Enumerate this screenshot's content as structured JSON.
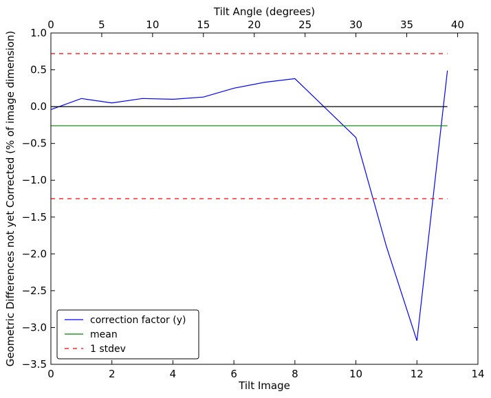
{
  "chart_data": {
    "type": "line",
    "xlabel": "Tilt Image",
    "ylabel": "Geometric Differences not yet Corrected (% of image dimension)",
    "top_xlabel": "Tilt Angle (degrees)",
    "xlim": [
      0,
      14
    ],
    "ylim": [
      -3.5,
      1.0
    ],
    "top_xlim": [
      0,
      42
    ],
    "xticks": [
      0,
      2,
      4,
      6,
      8,
      10,
      12,
      14
    ],
    "yticks": [
      1.0,
      0.5,
      0.0,
      -0.5,
      -1.0,
      -1.5,
      -2.0,
      -2.5,
      -3.0,
      -3.5
    ],
    "top_xticks": [
      0,
      5,
      10,
      15,
      20,
      25,
      30,
      35,
      40
    ],
    "xtick_labels": [
      "0",
      "2",
      "4",
      "6",
      "8",
      "10",
      "12",
      "14"
    ],
    "ytick_labels": [
      "1.0",
      "0.5",
      "0.0",
      "−0.5",
      "−1.0",
      "−1.5",
      "−2.0",
      "−2.5",
      "−3.0",
      "−3.5"
    ],
    "top_xtick_labels": [
      "0",
      "5",
      "10",
      "15",
      "20",
      "25",
      "30",
      "35",
      "40"
    ],
    "grid": false,
    "legend_position": "bottom-left",
    "series": [
      {
        "name": "correction factor (y)",
        "color": "#0000ff",
        "style": "solid",
        "x": [
          0,
          1,
          2,
          3,
          4,
          5,
          6,
          7,
          8,
          10,
          11,
          12,
          13
        ],
        "values": [
          -0.04,
          0.11,
          0.05,
          0.11,
          0.1,
          0.13,
          0.25,
          0.33,
          0.38,
          -0.42,
          -1.9,
          -3.18,
          0.49
        ]
      },
      {
        "name": "",
        "color": "#000000",
        "style": "solid",
        "x": [
          0,
          13
        ],
        "values": [
          0.0,
          0.0
        ]
      },
      {
        "name": "mean",
        "color": "#008000",
        "style": "solid",
        "x": [
          0,
          13
        ],
        "values": [
          -0.26,
          -0.26
        ]
      },
      {
        "name": "1 stdev",
        "color": "#ff0000",
        "style": "dashed",
        "x": [
          0,
          13
        ],
        "values": [
          0.72,
          0.72
        ]
      },
      {
        "name": "",
        "color": "#ff0000",
        "style": "dashed",
        "x": [
          0,
          13
        ],
        "values": [
          -1.25,
          -1.25
        ]
      }
    ],
    "legend": [
      {
        "label": "correction factor (y)",
        "color": "#0000ff",
        "style": "solid"
      },
      {
        "label": "mean",
        "color": "#008000",
        "style": "solid"
      },
      {
        "label": "1 stdev",
        "color": "#ff0000",
        "style": "dashed"
      }
    ]
  }
}
